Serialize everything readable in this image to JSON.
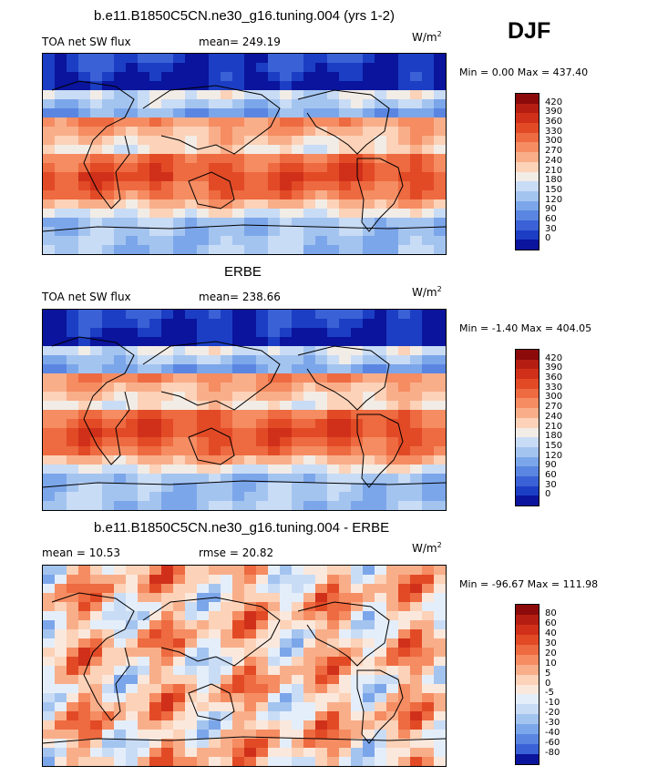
{
  "season": "DJF",
  "units": {
    "base": "W/m",
    "exp": "2"
  },
  "chart_data": [
    {
      "type": "heatmap",
      "title": "b.e11.B1850C5CN.ne30_g16.tuning.004 (yrs 1-2)",
      "variable": "TOA net SW flux",
      "stat_text": "mean= 249.19",
      "mean": 249.19,
      "min": 0.0,
      "max": 437.4,
      "minmax_text": "Min =   0.00 Max = 437.40",
      "colorbar_levels": [
        "420",
        "390",
        "360",
        "330",
        "300",
        "270",
        "240",
        "210",
        "180",
        "150",
        "120",
        "90",
        "60",
        "30",
        "0"
      ],
      "palette": "seq"
    },
    {
      "type": "heatmap",
      "title": "ERBE",
      "variable": "TOA net SW flux",
      "stat_text": "mean= 238.66",
      "mean": 238.66,
      "min": -1.4,
      "max": 404.05,
      "minmax_text": "Min =  -1.40 Max = 404.05",
      "colorbar_levels": [
        "420",
        "390",
        "360",
        "330",
        "300",
        "270",
        "240",
        "210",
        "180",
        "150",
        "120",
        "90",
        "60",
        "30",
        "0"
      ],
      "palette": "seq"
    },
    {
      "type": "heatmap",
      "title": "b.e11.B1850C5CN.ne30_g16.tuning.004 - ERBE",
      "stat_text": "mean =   10.53",
      "rmse_text": "rmse =   20.82",
      "mean": 10.53,
      "rmse": 20.82,
      "min": -96.67,
      "max": 111.98,
      "minmax_text": "Min = -96.67 Max = 111.98",
      "colorbar_levels": [
        "80",
        "60",
        "40",
        "30",
        "20",
        "10",
        "5",
        "0",
        "-5",
        "-10",
        "-20",
        "-30",
        "-40",
        "-60",
        "-80"
      ],
      "palette": "diff"
    }
  ],
  "colors": {
    "seq": [
      "#8c0a0a",
      "#b41e12",
      "#d0301a",
      "#e24a26",
      "#ee6a40",
      "#f58c62",
      "#f9ae8a",
      "#fcd2b8",
      "#f2ece6",
      "#c9dcf5",
      "#a4c4f0",
      "#7ca6ea",
      "#5a86e2",
      "#3a62d6",
      "#1c3ec4",
      "#0a149c"
    ],
    "diff": [
      "#8c0a0a",
      "#b41e12",
      "#d0301a",
      "#e24a26",
      "#ee6a40",
      "#f58c62",
      "#f9ae8a",
      "#fcd2b8",
      "#fbe8dc",
      "#e4eefa",
      "#c9dcf5",
      "#a4c4f0",
      "#7ca6ea",
      "#5a86e2",
      "#3a62d6",
      "#0a149c"
    ]
  }
}
